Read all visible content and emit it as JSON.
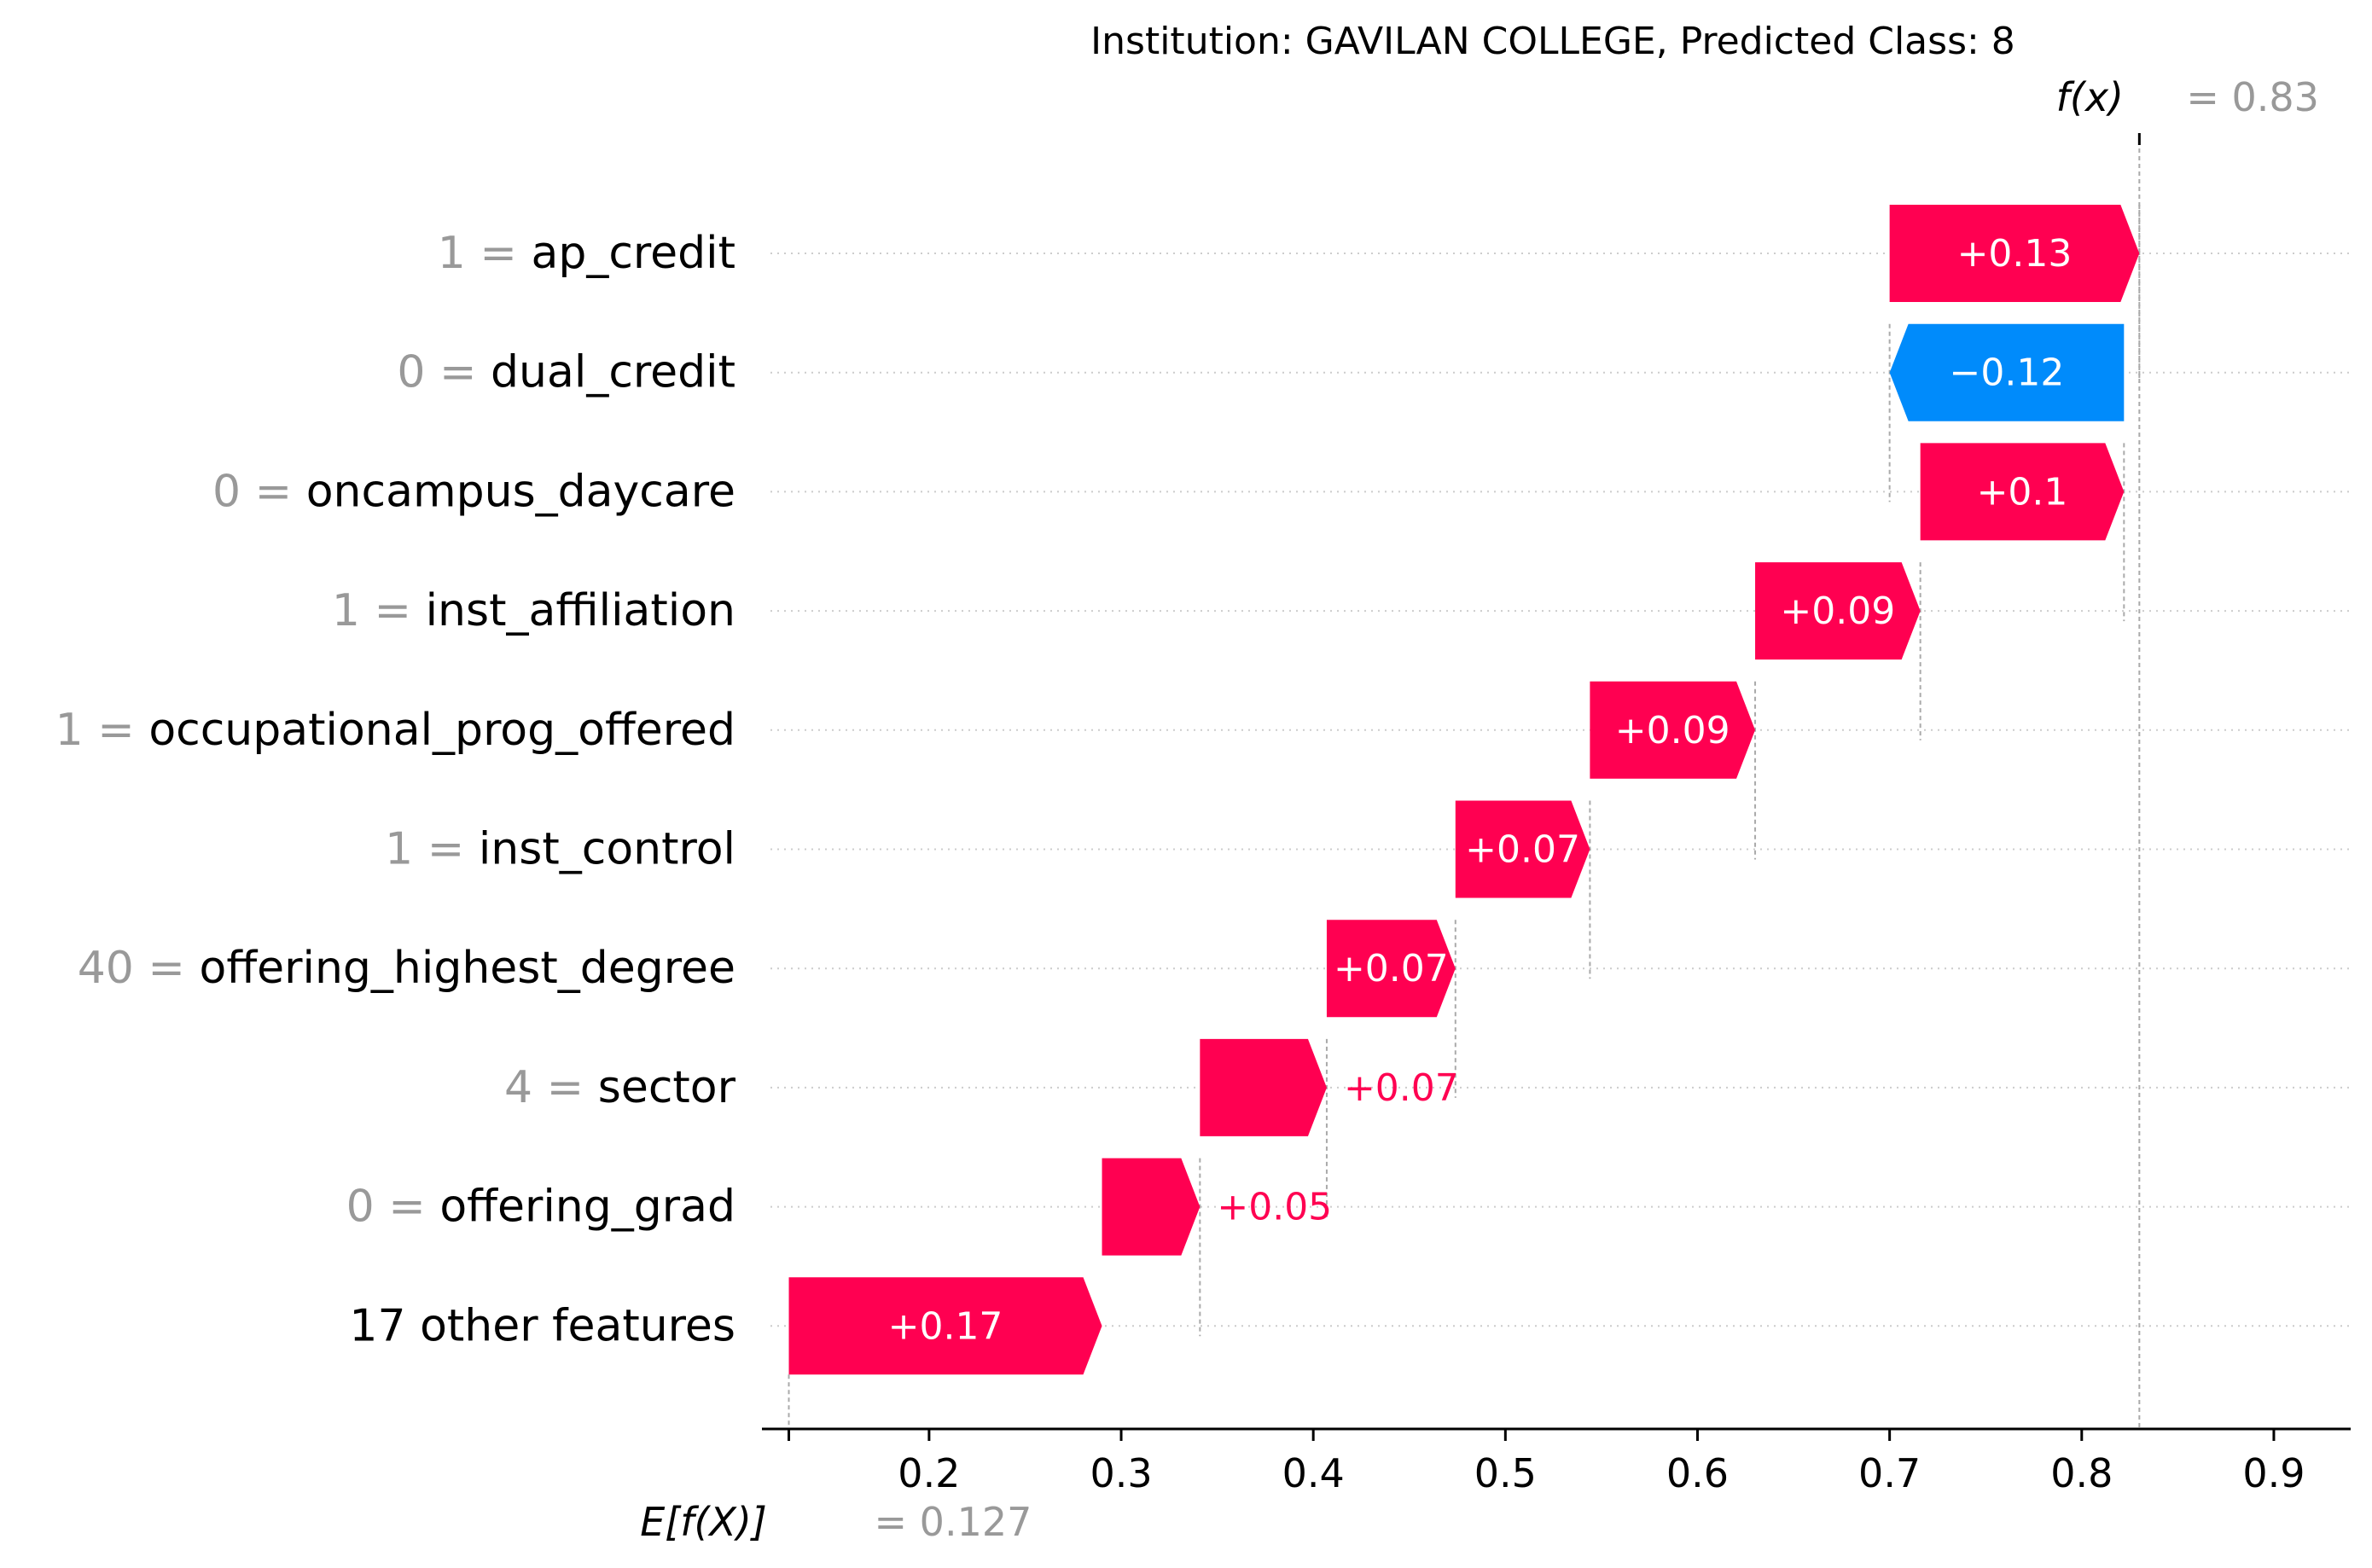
{
  "chart_data": {
    "type": "waterfall",
    "title": "Institution: GAVILAN COLLEGE, Predicted Class: 8",
    "fx_label": "f(x)",
    "fx_value": "= 0.83",
    "base_label": "E[f(X)]",
    "base_value": "= 0.127",
    "base": 0.127,
    "final": 0.83,
    "xlim": [
      0.113,
      0.94
    ],
    "xticks": [
      0.2,
      0.3,
      0.4,
      0.5,
      0.6,
      0.7,
      0.8,
      0.9
    ],
    "xtick_labels": [
      "0.2",
      "0.3",
      "0.4",
      "0.5",
      "0.6",
      "0.7",
      "0.8",
      "0.9"
    ],
    "features": [
      {
        "value": "1",
        "name": "ap_credit",
        "label": "+0.13",
        "start": 0.7,
        "end": 0.83
      },
      {
        "value": "0",
        "name": "dual_credit",
        "label": "−0.12",
        "start": 0.822,
        "end": 0.7
      },
      {
        "value": "0",
        "name": "oncampus_daycare",
        "label": "+0.1",
        "start": 0.716,
        "end": 0.822
      },
      {
        "value": "1",
        "name": "inst_affiliation",
        "label": "+0.09",
        "start": 0.63,
        "end": 0.716
      },
      {
        "value": "1",
        "name": "occupational_prog_offered",
        "label": "+0.09",
        "start": 0.544,
        "end": 0.63
      },
      {
        "value": "1",
        "name": "inst_control",
        "label": "+0.07",
        "start": 0.474,
        "end": 0.544
      },
      {
        "value": "40",
        "name": "offering_highest_degree",
        "label": "+0.07",
        "start": 0.407,
        "end": 0.474
      },
      {
        "value": "4",
        "name": "sector",
        "label": "+0.07",
        "start": 0.341,
        "end": 0.407
      },
      {
        "value": "0",
        "name": "offering_grad",
        "label": "+0.05",
        "start": 0.29,
        "end": 0.341
      },
      {
        "value": "",
        "name": "17 other features",
        "label": "+0.17",
        "start": 0.127,
        "end": 0.29
      }
    ],
    "colors": {
      "positive": "#ff0051",
      "negative": "#008bfb",
      "value_text": "#999999"
    }
  }
}
